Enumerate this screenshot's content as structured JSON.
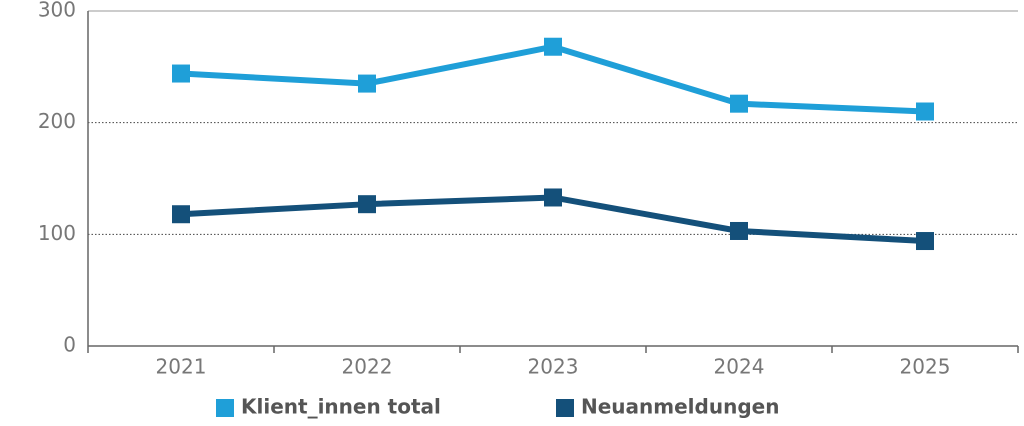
{
  "chart_data": {
    "type": "line",
    "categories": [
      "2021",
      "2022",
      "2023",
      "2024",
      "2025"
    ],
    "series": [
      {
        "name": "Klient_innen total",
        "color": "#1f9fd8",
        "values": [
          244,
          235,
          268,
          217,
          210
        ]
      },
      {
        "name": "Neuanmeldungen",
        "color": "#14507a",
        "values": [
          118,
          127,
          133,
          103,
          94
        ]
      }
    ],
    "ylim": [
      0,
      300
    ],
    "yticks": [
      0,
      100,
      200,
      300
    ],
    "grid": true,
    "legend": "bottom"
  }
}
